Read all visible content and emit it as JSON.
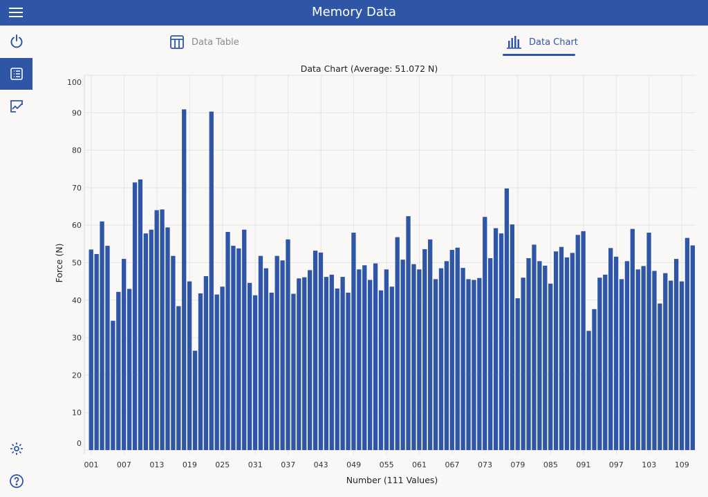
{
  "header": {
    "title": "Memory Data"
  },
  "tabs": [
    {
      "label": "Data Table"
    },
    {
      "label": "Data Chart",
      "active": true
    }
  ],
  "colors": {
    "accent": "#2f56a6",
    "bar": "#2f56a6"
  },
  "sidebar": {
    "items": [
      {
        "icon": "power-icon"
      },
      {
        "icon": "table-icon",
        "selected": true
      },
      {
        "icon": "chart-icon"
      },
      {
        "icon": "gear-icon"
      },
      {
        "icon": "help-icon"
      }
    ]
  },
  "chart_data": {
    "type": "bar",
    "title": "Data Chart (Average: 51.072 N)",
    "xlabel": "Number (111 Values)",
    "ylabel": "Force (N)",
    "ylim": [
      0,
      100
    ],
    "yticks": [
      0,
      10,
      20,
      30,
      40,
      50,
      60,
      70,
      80,
      90,
      100
    ],
    "xtick_labels": [
      "001",
      "007",
      "013",
      "019",
      "025",
      "031",
      "037",
      "043",
      "049",
      "055",
      "061",
      "067",
      "073",
      "079",
      "085",
      "091",
      "097",
      "103",
      "109"
    ],
    "grid": true,
    "values": [
      53.5,
      52.3,
      61,
      54.5,
      34.5,
      42.2,
      51,
      43,
      71.4,
      72.2,
      57.8,
      58.8,
      64,
      64.2,
      59.4,
      51.8,
      38.4,
      90.9,
      45,
      26.5,
      41.8,
      46.4,
      90.3,
      41.5,
      43.6,
      58.2,
      54.5,
      53.8,
      58.8,
      44.6,
      41.3,
      51.8,
      48.5,
      42,
      51.8,
      50.6,
      56.2,
      41.7,
      45.8,
      46.1,
      48,
      53.2,
      52.7,
      46.2,
      46.8,
      43.1,
      46.2,
      42,
      58,
      48.2,
      49.3,
      45.4,
      49.8,
      42.6,
      48.2,
      43.6,
      56.8,
      50.8,
      62.4,
      49.6,
      48.2,
      53.6,
      56.2,
      45.6,
      48.5,
      50.4,
      53.4,
      54,
      48.6,
      45.6,
      45.4,
      45.9,
      62.2,
      51.2,
      59.2,
      57.8,
      69.8,
      60.2,
      40.5,
      46,
      51.2,
      54.8,
      50.4,
      49.2,
      44.4,
      53,
      54.2,
      51.4,
      52.6,
      57.4,
      58.4,
      31.8,
      37.6,
      46,
      46.8,
      53.9,
      51.6,
      45.6,
      50.4,
      59,
      48.2,
      49.1,
      58,
      47.8,
      39.1,
      47.2,
      45.2,
      51,
      45,
      56.6,
      54.6
    ]
  }
}
